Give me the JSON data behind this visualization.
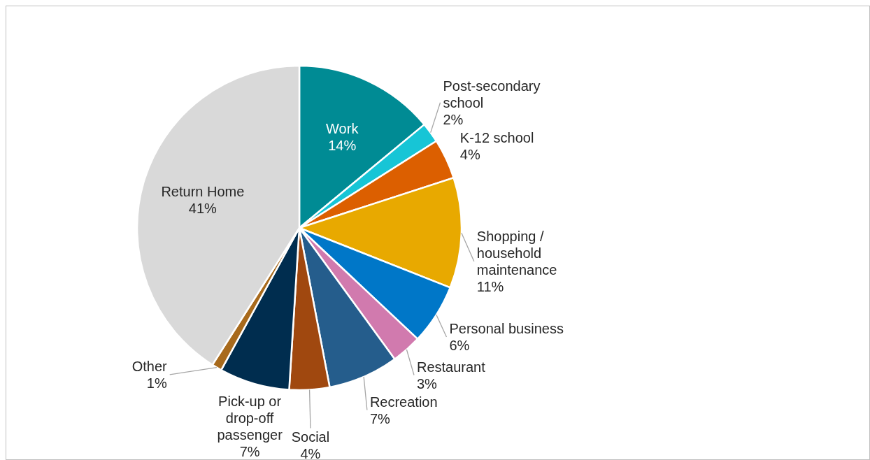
{
  "chart_data": {
    "type": "pie",
    "categories": [
      "Work",
      "Post-secondary school",
      "K-12 school",
      "Shopping / household maintenance",
      "Personal business",
      "Restaurant",
      "Recreation",
      "Social",
      "Pick-up or drop-off passenger",
      "Other",
      "Return Home"
    ],
    "values": [
      14,
      2,
      4,
      11,
      6,
      3,
      7,
      4,
      7,
      1,
      41
    ],
    "value_labels": [
      "14%",
      "2%",
      "4%",
      "11%",
      "6%",
      "3%",
      "7%",
      "4%",
      "7%",
      "1%",
      "41%"
    ],
    "colors": [
      "#008b94",
      "#17c5d6",
      "#dc5f00",
      "#e8a900",
      "#0077c8",
      "#d17aae",
      "#255d8c",
      "#a0480f",
      "#002d4f",
      "#a86a1c",
      "#d9d9d9"
    ]
  }
}
